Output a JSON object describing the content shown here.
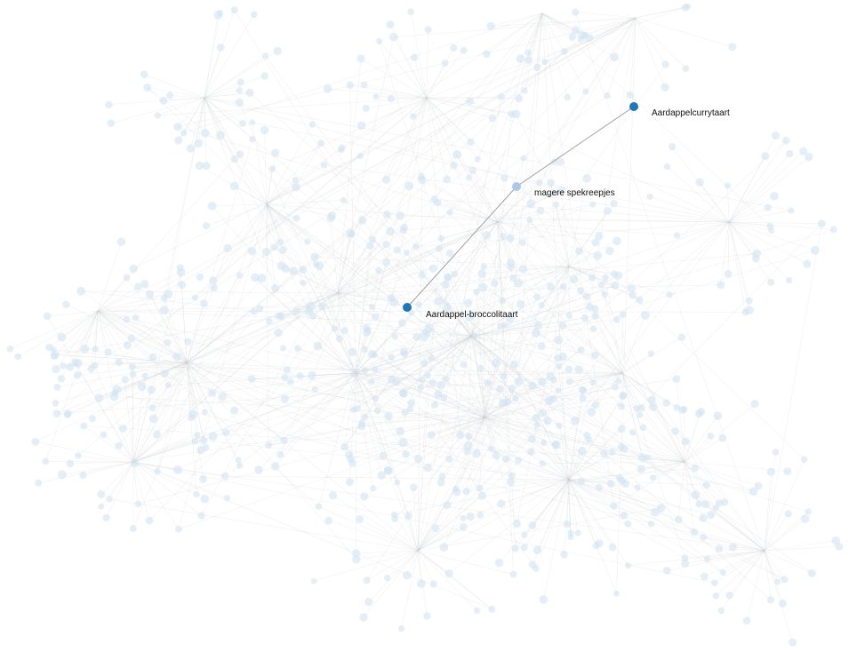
{
  "graph": {
    "highlighted_nodes": [
      {
        "id": "aardappelcurrytaart",
        "label": "Aardappelcurrytaart",
        "kind": "recipe"
      },
      {
        "id": "magere-spekreepjes",
        "label": "magere spekreepjes",
        "kind": "ingredient"
      },
      {
        "id": "aardappel-broccolitaart",
        "label": "Aardappel-broccolitaart",
        "kind": "recipe"
      }
    ],
    "highlighted_path": [
      "aardappel-broccolitaart",
      "magere-spekreepjes",
      "aardappelcurrytaart"
    ]
  },
  "colors": {
    "background": "#ffffff",
    "recipe_node": "#1f77b4",
    "ingredient_node": "#aec7e8",
    "faded_node": "#cfe2f3",
    "faded_edge": "#c8ccd2",
    "path_edge": "#9ea3a8"
  }
}
